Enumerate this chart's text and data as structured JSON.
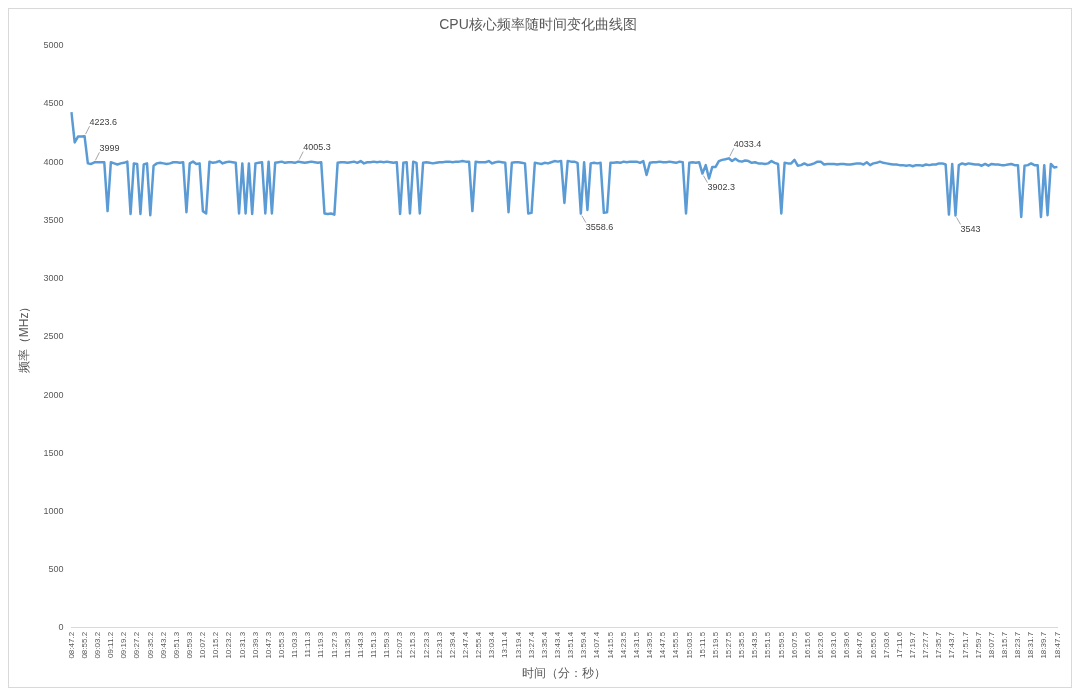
{
  "chart_data": {
    "type": "line",
    "title": "CPU核心频率随时间变化曲线图",
    "xlabel": "时间（分：秒）",
    "ylabel": "频率（MHz）",
    "categories": [
      "08:47.2",
      null,
      null,
      null,
      "08:55.2",
      null,
      null,
      null,
      "09:03.2",
      null,
      null,
      null,
      "09:11.2",
      null,
      null,
      null,
      "09:19.2",
      null,
      null,
      null,
      "09:27.2",
      null,
      null,
      null,
      "09:35.2",
      null,
      null,
      null,
      "09:43.2",
      null,
      null,
      null,
      "09:51.3",
      null,
      null,
      null,
      "09:59.3",
      null,
      null,
      null,
      "10:07.2",
      null,
      null,
      null,
      "10:15.2",
      null,
      null,
      null,
      "10:23.2",
      null,
      null,
      null,
      "10:31.3",
      null,
      null,
      null,
      "10:39.3",
      null,
      null,
      null,
      "10:47.3",
      null,
      null,
      null,
      "10:55.3",
      null,
      null,
      null,
      "11:03.3",
      null,
      null,
      null,
      "11:11.3",
      null,
      null,
      null,
      "11:19.3",
      null,
      null,
      null,
      "11:27.3",
      null,
      null,
      null,
      "11:35.3",
      null,
      null,
      null,
      "11:43.3",
      null,
      null,
      null,
      "11:51.3",
      null,
      null,
      null,
      "11:59.3",
      null,
      null,
      null,
      "12:07.3",
      null,
      null,
      null,
      "12:15.3",
      null,
      null,
      null,
      "12:23.3",
      null,
      null,
      null,
      "12:31.3",
      null,
      null,
      null,
      "12:39.4",
      null,
      null,
      null,
      "12:47.4",
      null,
      null,
      null,
      "12:55.4",
      null,
      null,
      null,
      "13:03.4",
      null,
      null,
      null,
      "13:11.4",
      null,
      null,
      null,
      "13:19.4",
      null,
      null,
      null,
      "13:27.4",
      null,
      null,
      null,
      "13:35.4",
      null,
      null,
      null,
      "13:43.4",
      null,
      null,
      null,
      "13:51.4",
      null,
      null,
      null,
      "13:59.4",
      null,
      null,
      null,
      "14:07.4",
      null,
      null,
      null,
      "14:15.5",
      null,
      null,
      null,
      "14:23.5",
      null,
      null,
      null,
      "14:31.5",
      null,
      null,
      null,
      "14:39.5",
      null,
      null,
      null,
      "14:47.5",
      null,
      null,
      null,
      "14:55.5",
      null,
      null,
      null,
      "15:03.5",
      null,
      null,
      null,
      "15:11.5",
      null,
      null,
      null,
      "15:19.5",
      null,
      null,
      null,
      "15:27.5",
      null,
      null,
      null,
      "15:35.5",
      null,
      null,
      null,
      "15:43.5",
      null,
      null,
      null,
      "15:51.5",
      null,
      null,
      null,
      "15:59.5",
      null,
      null,
      null,
      "16:07.5",
      null,
      null,
      null,
      "16:15.6",
      null,
      null,
      null,
      "16:23.6",
      null,
      null,
      null,
      "16:31.6",
      null,
      null,
      null,
      "16:39.6",
      null,
      null,
      null,
      "16:47.6",
      null,
      null,
      null,
      "16:55.6",
      null,
      null,
      null,
      "17:03.6",
      null,
      null,
      null,
      "17:11.6",
      null,
      null,
      null,
      "17:19.7",
      null,
      null,
      null,
      "17:27.7",
      null,
      null,
      null,
      "17:35.7",
      null,
      null,
      null,
      "17:43.7",
      null,
      null,
      null,
      "17:51.7",
      null,
      null,
      null,
      "17:59.7",
      null,
      null,
      null,
      "18:07.7",
      null,
      null,
      null,
      "18:15.7",
      null,
      null,
      null,
      "18:23.7",
      null,
      null,
      null,
      "18:31.7",
      null,
      null,
      null,
      "18:39.7",
      null,
      null,
      null,
      "18:47.7"
    ],
    "series": [
      {
        "color": "#5b9bd5",
        "values": [
          4430,
          4170,
          4220,
          4220,
          4223.6,
          3990,
          3985,
          3999,
          4000,
          4000,
          4000,
          3580,
          4000,
          3990,
          3980,
          3990,
          3995,
          4005,
          3555,
          3990,
          3985,
          3555,
          3980,
          3990,
          3545,
          3970,
          3990,
          3995,
          3990,
          3985,
          3990,
          4000,
          4000,
          3995,
          4000,
          3570,
          3990,
          4005,
          3985,
          3990,
          3580,
          3560,
          4005,
          3995,
          4000,
          4010,
          3990,
          4000,
          4005,
          4000,
          3995,
          3560,
          3990,
          3560,
          3990,
          3555,
          3990,
          3995,
          4000,
          3560,
          4005,
          3560,
          3995,
          4000,
          4005,
          3995,
          4000,
          4000,
          3995,
          4005.3,
          4000,
          3995,
          4000,
          4005,
          4000,
          3995,
          4000,
          3560,
          3555,
          3560,
          3550,
          3995,
          4000,
          4000,
          3995,
          4000,
          4005,
          3995,
          4010,
          3990,
          4000,
          4000,
          4005,
          4000,
          4005,
          4000,
          4005,
          4000,
          3995,
          4000,
          3555,
          3995,
          4000,
          3560,
          4005,
          3995,
          3560,
          3995,
          4000,
          3995,
          3990,
          3995,
          4000,
          4000,
          4005,
          4005,
          4000,
          4005,
          4005,
          4010,
          4005,
          4005,
          3580,
          4005,
          4000,
          4000,
          4000,
          4010,
          3990,
          4000,
          4005,
          4000,
          3995,
          3570,
          3995,
          4000,
          4000,
          3995,
          3990,
          3560,
          3565,
          3995,
          3990,
          3985,
          3995,
          3990,
          4000,
          4010,
          4005,
          4010,
          3650,
          4010,
          4005,
          4005,
          3995,
          3558.6,
          4000,
          3590,
          3990,
          3995,
          3990,
          3995,
          3565,
          3570,
          3995,
          3995,
          4000,
          3995,
          4005,
          4000,
          4005,
          4005,
          4005,
          3995,
          4010,
          3890,
          3995,
          4000,
          4000,
          4005,
          4000,
          4000,
          4005,
          4000,
          3995,
          4005,
          4000,
          3560,
          3995,
          4000,
          3995,
          4000,
          3902.3,
          3975,
          3860,
          3960,
          3960,
          4010,
          4020,
          4025,
          4033.4,
          4010,
          4030,
          4010,
          4005,
          4015,
          4010,
          3995,
          4000,
          3990,
          3990,
          3985,
          3990,
          4010,
          3995,
          3985,
          3560,
          3995,
          3990,
          3990,
          4020,
          3970,
          3975,
          3990,
          3975,
          3980,
          3990,
          4005,
          4005,
          3980,
          3985,
          3985,
          3985,
          3980,
          3985,
          3985,
          3980,
          3980,
          3985,
          3990,
          3990,
          3980,
          4000,
          3975,
          3990,
          3995,
          4005,
          3995,
          3990,
          3985,
          3980,
          3980,
          3975,
          3975,
          3970,
          3975,
          3965,
          3975,
          3975,
          3970,
          3980,
          3975,
          3980,
          3980,
          3990,
          3990,
          3980,
          3550,
          3985,
          3543,
          3975,
          3990,
          3980,
          3990,
          3985,
          3980,
          3980,
          3970,
          3985,
          3970,
          3985,
          3980,
          3980,
          3975,
          3975,
          3980,
          3985,
          3975,
          3975,
          3530,
          3970,
          3975,
          3990,
          3975,
          3975,
          3530,
          3975,
          3545,
          3985,
          3955,
          3960
        ],
        "value_labels": [
          null,
          null,
          null,
          null,
          "4223.6",
          null,
          null,
          "3999",
          null,
          null,
          null,
          null,
          null,
          null,
          null,
          null,
          null,
          null,
          null,
          null,
          null,
          null,
          null,
          null,
          null,
          null,
          null,
          null,
          null,
          null,
          null,
          null,
          null,
          null,
          null,
          null,
          null,
          null,
          null,
          null,
          null,
          null,
          null,
          null,
          null,
          null,
          null,
          null,
          null,
          null,
          null,
          null,
          null,
          null,
          null,
          null,
          null,
          null,
          null,
          null,
          null,
          null,
          null,
          null,
          null,
          null,
          null,
          null,
          null,
          "4005.3",
          null,
          null,
          null,
          null,
          null,
          null,
          null,
          null,
          null,
          null,
          null,
          null,
          null,
          null,
          null,
          null,
          null,
          null,
          null,
          null,
          null,
          null,
          null,
          null,
          null,
          null,
          null,
          null,
          null,
          null,
          null,
          null,
          null,
          null,
          null,
          null,
          null,
          null,
          null,
          null,
          null,
          null,
          null,
          null,
          null,
          null,
          null,
          null,
          null,
          null,
          null,
          null,
          null,
          null,
          null,
          null,
          null,
          null,
          null,
          null,
          null,
          null,
          null,
          null,
          null,
          null,
          null,
          null,
          null,
          null,
          null,
          null,
          null,
          null,
          null,
          null,
          null,
          null,
          null,
          null,
          null,
          null,
          null,
          null,
          null,
          "3558.6",
          null,
          null,
          null,
          null,
          null,
          null,
          null,
          null,
          null,
          null,
          null,
          null,
          null,
          null,
          null,
          null,
          null,
          null,
          null,
          null,
          null,
          null,
          null,
          null,
          null,
          null,
          null,
          null,
          null,
          null,
          null,
          null,
          null,
          null,
          null,
          null,
          "3902.3",
          null,
          null,
          null,
          null,
          null,
          null,
          null,
          "4033.4",
          null,
          null,
          null,
          null,
          null,
          null,
          null,
          null,
          null,
          null,
          null,
          null,
          null,
          null,
          null,
          null,
          null,
          null,
          null,
          null,
          null,
          null,
          null,
          null,
          null,
          null,
          null,
          null,
          null,
          null,
          null,
          null,
          null,
          null,
          null,
          null,
          null,
          null,
          null,
          null,
          null,
          null,
          null,
          null,
          null,
          null,
          null,
          null,
          null,
          null,
          null,
          null,
          null,
          null,
          null,
          null,
          null,
          null,
          null,
          null,
          null,
          null,
          null,
          null,
          null,
          null,
          null,
          null,
          "3543",
          null,
          null,
          null,
          null,
          null,
          null,
          null,
          null,
          null,
          null,
          null,
          null,
          null,
          null,
          null,
          null,
          null,
          null,
          null,
          null,
          null,
          null,
          null,
          null,
          null,
          null,
          null,
          null,
          null,
          null,
          null
        ]
      }
    ],
    "ylim": [
      0,
      5000
    ],
    "yticks": [
      0,
      500,
      1000,
      1500,
      2000,
      2500,
      3000,
      3500,
      4000,
      4500,
      5000
    ],
    "grid": false,
    "legend": false,
    "marker": "none",
    "line_style": "solid"
  }
}
